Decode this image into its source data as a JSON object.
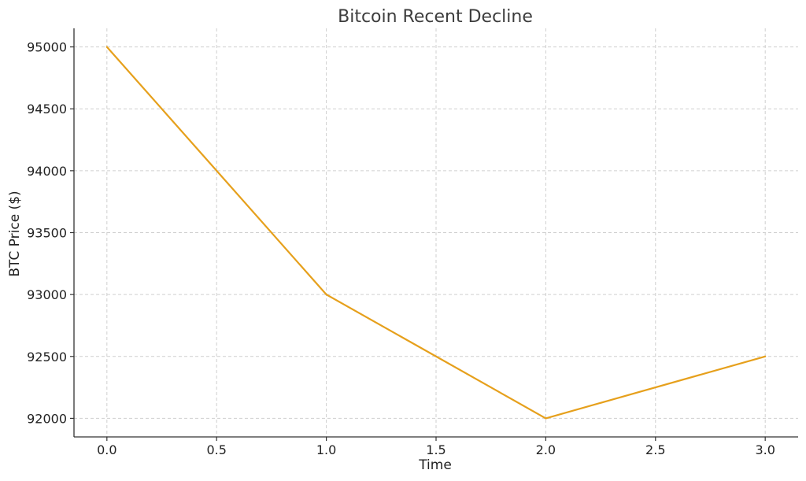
{
  "chart_data": {
    "type": "line",
    "title": "Bitcoin Recent Decline",
    "xlabel": "Time",
    "ylabel": "BTC Price ($)",
    "x": [
      0,
      1,
      2,
      3
    ],
    "series": [
      {
        "values": [
          95000,
          93000,
          92000,
          92500
        ],
        "color": "#e6a01c"
      }
    ],
    "x_ticks": [
      0.0,
      0.5,
      1.0,
      1.5,
      2.0,
      2.5,
      3.0
    ],
    "x_tick_labels": [
      "0.0",
      "0.5",
      "1.0",
      "1.5",
      "2.0",
      "2.5",
      "3.0"
    ],
    "y_ticks": [
      92000,
      92500,
      93000,
      93500,
      94000,
      94500,
      95000
    ],
    "y_tick_labels": [
      "92000",
      "92500",
      "93000",
      "93500",
      "94000",
      "94500",
      "95000"
    ],
    "xlim": [
      -0.15,
      3.15
    ],
    "ylim": [
      91850,
      95150
    ],
    "grid": true,
    "legend": "none"
  }
}
